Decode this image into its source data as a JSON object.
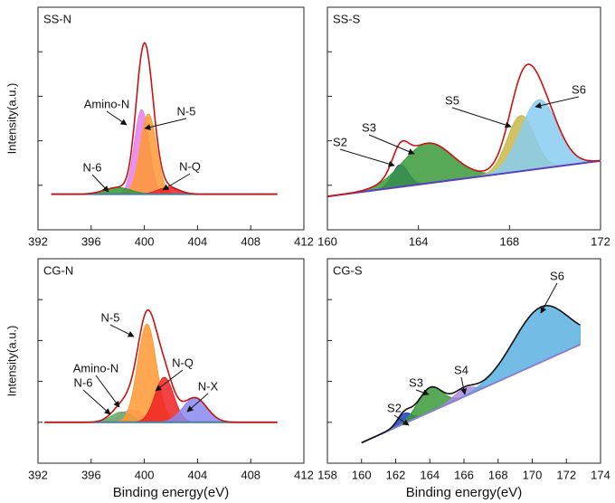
{
  "chart_data": [
    {
      "type": "xps",
      "title": "SS-N",
      "ylabel": "Intensity(a.u.)",
      "xlim": [
        392,
        412
      ],
      "xticks": [
        392,
        396,
        400,
        404,
        408,
        412
      ],
      "ylim": [
        0,
        100
      ],
      "baseline_x": [
        393,
        410
      ],
      "baseline_y": [
        16,
        16
      ],
      "baseline_color": "#4a7fa0",
      "envelope_color": "#cc1111",
      "series": [
        {
          "name": "Amino-N",
          "color": "#e67ee6",
          "center": 399.8,
          "height": 38,
          "width": 0.55
        },
        {
          "name": "N-5",
          "color": "#ff9933",
          "center": 400.3,
          "height": 36,
          "width": 0.6
        },
        {
          "name": "N-6",
          "color": "#339933",
          "center": 398.0,
          "height": 3,
          "width": 1.0
        },
        {
          "name": "N-Q",
          "color": "#ee2222",
          "center": 401.8,
          "height": 3,
          "width": 0.8
        }
      ]
    },
    {
      "type": "xps",
      "title": "SS-S",
      "xlim": [
        160,
        172
      ],
      "xticks": [
        160,
        164,
        168,
        172
      ],
      "ylim": [
        0,
        100
      ],
      "baseline_x": [
        160,
        172
      ],
      "baseline_y": [
        15,
        31
      ],
      "baseline_color": "#5a3fc0",
      "envelope_color": "#cc1111",
      "series": [
        {
          "name": "S2",
          "color": "#1f3fbf",
          "center": 163.2,
          "height": 10,
          "width": 0.35
        },
        {
          "name": "S3",
          "color": "#3a9a3a",
          "center": 164.4,
          "height": 18,
          "width": 1.1
        },
        {
          "name": "S5",
          "color": "#c8b84a",
          "center": 168.5,
          "height": 25,
          "width": 0.6
        },
        {
          "name": "S6",
          "color": "#88ccf0",
          "center": 169.3,
          "height": 31,
          "width": 0.8
        }
      ]
    },
    {
      "type": "xps",
      "title": "CG-N",
      "ylabel": "Intensity(a.u.)",
      "xlabel": "Binding energy(eV)",
      "xlim": [
        392,
        412
      ],
      "xticks": [
        392,
        396,
        400,
        404,
        408,
        412
      ],
      "ylim": [
        0,
        100
      ],
      "baseline_x": [
        392.5,
        410
      ],
      "baseline_y": [
        20,
        20
      ],
      "baseline_color": "#4a7fa0",
      "envelope_color": "#cc1111",
      "series": [
        {
          "name": "Amino-N",
          "color": "#e69ee6",
          "center": 399.0,
          "height": 6,
          "width": 0.9
        },
        {
          "name": "N-6",
          "color": "#66aa66",
          "center": 398.3,
          "height": 5,
          "width": 0.8
        },
        {
          "name": "N-5",
          "color": "#ff9933",
          "center": 400.2,
          "height": 48,
          "width": 0.7
        },
        {
          "name": "N-Q",
          "color": "#ee2222",
          "center": 401.5,
          "height": 22,
          "width": 0.7
        },
        {
          "name": "N-X",
          "color": "#8888ee",
          "center": 403.8,
          "height": 12,
          "width": 0.9
        }
      ]
    },
    {
      "type": "xps",
      "title": "CG-S",
      "xlabel": "Binding energy(eV)",
      "xlim": [
        158,
        174
      ],
      "xticks": [
        158,
        160,
        162,
        164,
        166,
        168,
        170,
        172,
        174
      ],
      "ylim": [
        0,
        100
      ],
      "baseline_x": [
        160,
        172.8
      ],
      "baseline_y": [
        10,
        58
      ],
      "baseline_color": "#8a7fd0",
      "envelope_color": "#111111",
      "series": [
        {
          "name": "S2",
          "color": "#1f3fbf",
          "center": 162.5,
          "height": 5,
          "width": 0.4
        },
        {
          "name": "S3",
          "color": "#3a9a3a",
          "center": 164.0,
          "height": 12,
          "width": 0.7
        },
        {
          "name": "S4",
          "color": "#b088e0",
          "center": 166.0,
          "height": 4,
          "width": 0.6
        },
        {
          "name": "S6",
          "color": "#5ab0e0",
          "center": 170.5,
          "height": 27,
          "width": 1.6
        }
      ]
    }
  ]
}
